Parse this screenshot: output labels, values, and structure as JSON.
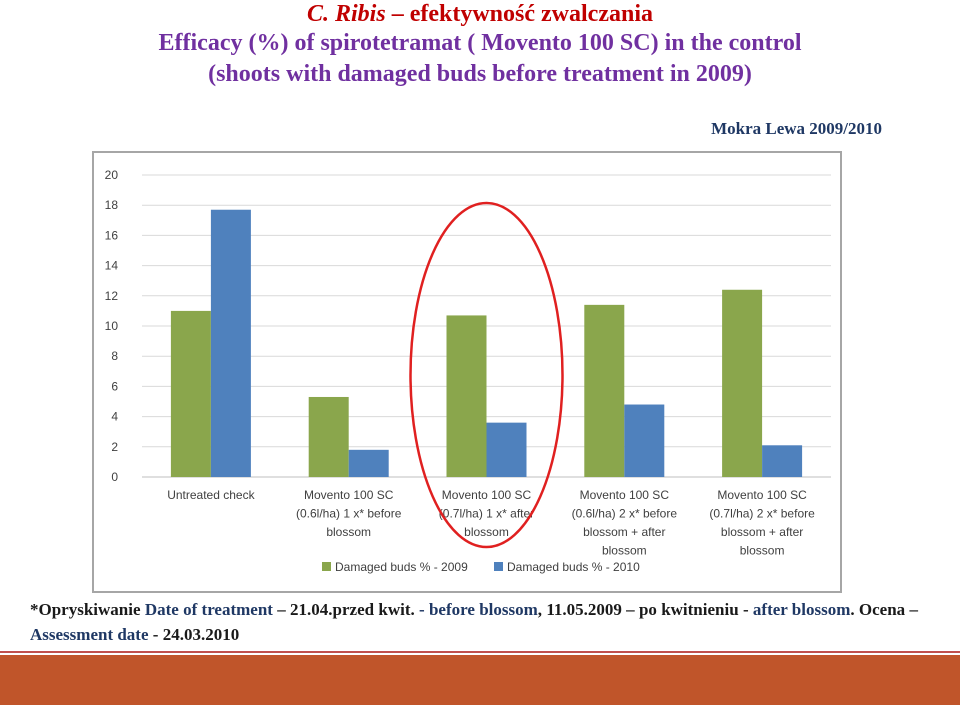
{
  "title": {
    "line1_latin": "C. Ribis",
    "line1_rest": " – efektywność zwalczania",
    "line2": "Efficacy (%) of spirotetramat ( Movento 100 SC) in the control",
    "line3": "(shoots with damaged buds before treatment in 2009)"
  },
  "location": "Mokra Lewa 2009/2010",
  "footnote": {
    "p1": "*Opryskiwanie ",
    "p2": "Date of treatment",
    "p3": " – 21.04.przed kwit. ",
    "p4": "- before blossom",
    "p5": ", 11.05.2009 – po kwitnieniu - ",
    "p6": "after blossom",
    "p7": ". Ocena –",
    "p8": "Assessment date",
    "p9": " - 24.03.2010"
  },
  "colors": {
    "series_2009": "#8aa64c",
    "series_2010": "#4f81bd",
    "highlight_ellipse": "#e02020",
    "bottom_band": "#c0552a"
  },
  "chart_data": {
    "type": "bar",
    "categories": [
      [
        "Untreated check"
      ],
      [
        "Movento 100 SC",
        "(0.6l/ha) 1 x* before",
        "blossom"
      ],
      [
        "Movento 100 SC",
        "(0.7l/ha) 1 x* after",
        "blossom"
      ],
      [
        "Movento 100 SC",
        "(0.6l/ha) 2 x* before",
        "blossom + after",
        "blossom"
      ],
      [
        "Movento 100 SC",
        "(0.7l/ha) 2 x* before",
        "blossom + after",
        "blossom"
      ]
    ],
    "series": [
      {
        "name": "Damaged buds % - 2009",
        "values": [
          11.0,
          5.3,
          10.7,
          11.4,
          12.4
        ]
      },
      {
        "name": "Damaged buds % - 2010",
        "values": [
          17.7,
          1.8,
          3.6,
          4.8,
          2.1
        ]
      }
    ],
    "ylim": [
      0,
      20
    ],
    "yticks": [
      "0",
      "2",
      "4",
      "6",
      "8",
      "10",
      "12",
      "14",
      "16",
      "18",
      "20"
    ],
    "grid": true,
    "legend_position": "bottom",
    "highlighted_category": 2
  }
}
